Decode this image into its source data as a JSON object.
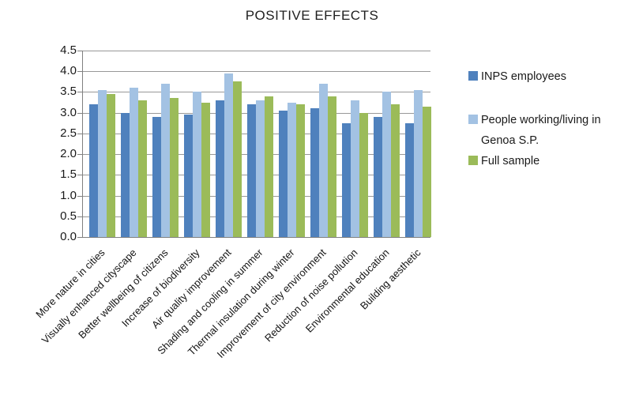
{
  "title": "POSITIVE EFFECTS",
  "colors": {
    "series_inps": "#4F81BD",
    "series_genoa": "#A3C2E3",
    "series_full": "#9BBB59",
    "gridline": "#989898",
    "axis": "#808080"
  },
  "legend": {
    "items": [
      {
        "label": "INPS employees",
        "color": "#4F81BD"
      },
      {
        "label": "People working/living in Genoa S.P.",
        "color": "#A3C2E3"
      },
      {
        "label": "Full sample",
        "color": "#9BBB59"
      }
    ]
  },
  "chart_data": {
    "type": "bar",
    "title": "POSITIVE EFFECTS",
    "categories": [
      "More nature in cities",
      "Visually enhanced cityscape",
      "Better wellbeing of citizens",
      "Increase of biodiversity",
      "Air quality improvement",
      "Shading and cooling in summer",
      "Thermal insulation during winter",
      "Improvement of city environment",
      "Reduction of noise pollution",
      "Environmental education",
      "Building aesthetic"
    ],
    "series": [
      {
        "name": "INPS employees",
        "color": "#4F81BD",
        "values": [
          3.2,
          3.0,
          2.9,
          2.95,
          3.3,
          3.2,
          3.05,
          3.1,
          2.75,
          2.9,
          2.75
        ]
      },
      {
        "name": "People working/living in Genoa S.P.",
        "color": "#A3C2E3",
        "values": [
          3.55,
          3.6,
          3.7,
          3.5,
          3.95,
          3.3,
          3.25,
          3.7,
          3.3,
          3.5,
          3.55
        ]
      },
      {
        "name": "Full sample",
        "color": "#9BBB59",
        "values": [
          3.45,
          3.3,
          3.35,
          3.25,
          3.75,
          3.4,
          3.2,
          3.4,
          3.0,
          3.2,
          3.15
        ]
      }
    ],
    "xlabel": "",
    "ylabel": "",
    "ylim": [
      0,
      4.5
    ],
    "ytick_step": 0.5,
    "yticks": [
      "4.5",
      "4.0",
      "3.5",
      "3.0",
      "2.5",
      "2.0",
      "1.5",
      "1.0",
      "0.5",
      "0.0"
    ],
    "grid": true,
    "legend_position": "right",
    "x_label_rotation_deg": -45
  }
}
